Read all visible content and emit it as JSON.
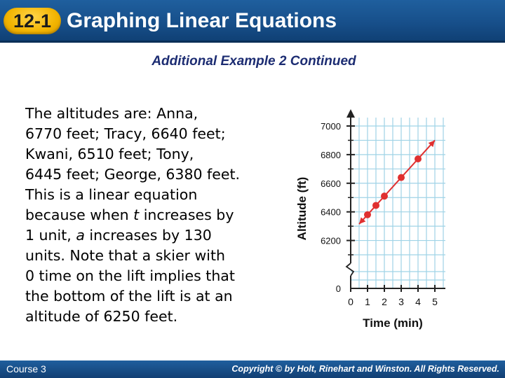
{
  "header": {
    "lesson_number": "12-1",
    "title": "Graphing Linear Equations"
  },
  "subtitle": "Additional Example 2 Continued",
  "body": {
    "lines": [
      "The altitudes are: Anna,",
      "6770 feet; Tracy, 6640 feet;",
      "Kwani, 6510 feet; Tony,",
      "6445 feet; George, 6380 feet.",
      "This is a linear equation",
      "because when |t| increases by",
      "1 unit, |a| increases by 130",
      "units. Note that a skier with",
      "0 time on the lift implies that",
      "the bottom of the lift is at an",
      "altitude of 6250 feet."
    ]
  },
  "footer": {
    "course": "Course 3",
    "copyright": "Copyright © by Holt, Rinehart and Winston. All Rights Reserved."
  },
  "chart_data": {
    "type": "line",
    "xlabel": "Time (min)",
    "ylabel": "Altitude (ft)",
    "x_ticks": [
      0,
      1,
      2,
      3,
      4,
      5
    ],
    "y_ticks": [
      0,
      6200,
      6400,
      6600,
      6800,
      7000
    ],
    "xlim": [
      0,
      5.5
    ],
    "ylim": [
      6100,
      7000
    ],
    "axis_break": true,
    "grid": true,
    "line_color": "#e03030",
    "grid_color": "#9fd3e6",
    "points": [
      {
        "x": 1,
        "y": 6380
      },
      {
        "x": 1.5,
        "y": 6445
      },
      {
        "x": 2,
        "y": 6510
      },
      {
        "x": 3,
        "y": 6640
      },
      {
        "x": 4,
        "y": 6770
      }
    ],
    "line": {
      "x1": 0.5,
      "y1": 6315,
      "x2": 5,
      "y2": 6900
    }
  }
}
